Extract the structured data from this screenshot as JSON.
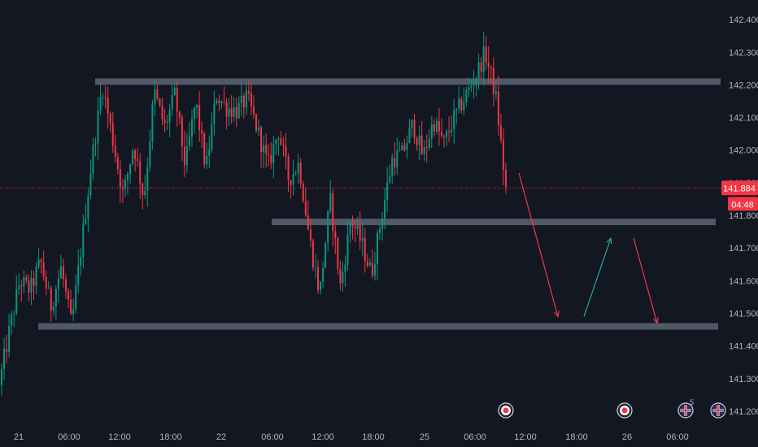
{
  "chart_data": {
    "type": "candlestick",
    "y_axis": {
      "range": [
        141.18,
        142.46
      ],
      "ticks": [
        "142.400",
        "142.300",
        "142.200",
        "142.100",
        "142.000",
        "141.900",
        "141.800",
        "141.700",
        "141.600",
        "141.500",
        "141.400",
        "141.300",
        "141.200"
      ]
    },
    "x_axis": {
      "ticks": [
        "21",
        "06:00",
        "12:00",
        "18:00",
        "22",
        "06:00",
        "12:00",
        "18:00",
        "25",
        "06:00",
        "12:00",
        "18:00",
        "26",
        "06:00"
      ]
    },
    "current_price": {
      "value": 141.884,
      "label": "141.884",
      "countdown": "04:48"
    },
    "levels": [
      {
        "name": "resistance",
        "price": 142.21
      },
      {
        "name": "middle-support",
        "price": 141.78
      },
      {
        "name": "lower-support",
        "price": 141.46
      }
    ],
    "projection": [
      {
        "direction": "down",
        "from": 141.93,
        "to": 141.49
      },
      {
        "direction": "up",
        "from": 141.49,
        "to": 141.73
      },
      {
        "direction": "down",
        "from": 141.73,
        "to": 141.47
      }
    ],
    "price_path": [
      141.28,
      141.45,
      141.6,
      141.57,
      141.66,
      141.52,
      141.64,
      141.46,
      141.72,
      141.98,
      142.2,
      142.03,
      141.86,
      142.02,
      141.85,
      142.18,
      142.07,
      142.17,
      141.95,
      142.15,
      141.94,
      142.17,
      142.13,
      142.12,
      142.16,
      142.06,
      141.95,
      142.06,
      141.91,
      141.96,
      141.73,
      141.56,
      141.85,
      141.58,
      141.79,
      141.72,
      141.62,
      141.8,
      141.97,
      141.99,
      142.08,
      141.98,
      142.09,
      142.02,
      142.1,
      142.16,
      142.22,
      142.3,
      142.17,
      141.88
    ],
    "colors": {
      "up": "#089981",
      "down": "#f23645",
      "level": "#5d6473",
      "up_arrow": "#26a69a",
      "down_arrow": "#f23645",
      "background": "#131722"
    },
    "event_markers": [
      {
        "kind": "event",
        "count": ""
      },
      {
        "kind": "event",
        "count": ""
      },
      {
        "kind": "flag-gb",
        "count": "5"
      },
      {
        "kind": "flag-gb",
        "count": ""
      }
    ]
  }
}
